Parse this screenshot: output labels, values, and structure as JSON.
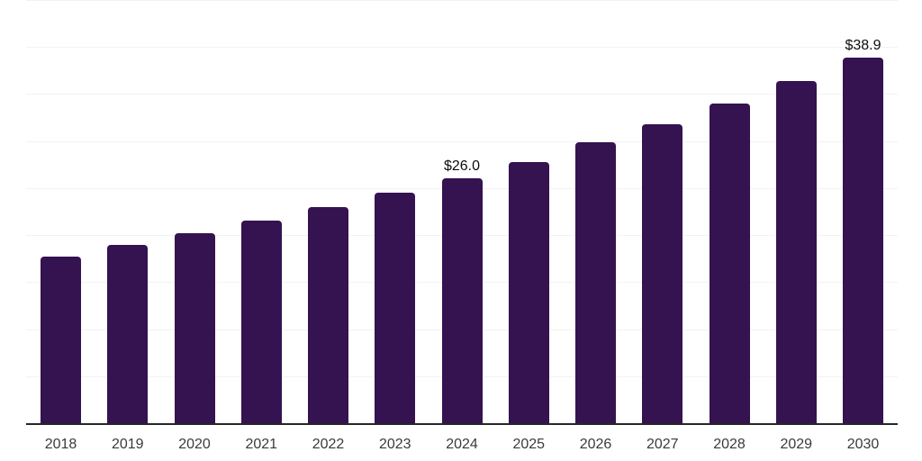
{
  "chart_data": {
    "type": "bar",
    "title": "",
    "xlabel": "",
    "ylabel": "",
    "categories": [
      "2018",
      "2019",
      "2020",
      "2021",
      "2022",
      "2023",
      "2024",
      "2025",
      "2026",
      "2027",
      "2028",
      "2029",
      "2030"
    ],
    "values": [
      17.7,
      19.0,
      20.2,
      21.5,
      23.0,
      24.5,
      26.0,
      27.8,
      29.9,
      31.8,
      34.0,
      36.4,
      38.9
    ],
    "point_labels": [
      "",
      "",
      "",
      "",
      "",
      "",
      "$26.0",
      "",
      "",
      "",
      "",
      "",
      "$38.9"
    ],
    "ylim": [
      0,
      45
    ],
    "grid_step": 5,
    "grid": "horizontal",
    "legend": "none",
    "colors": {
      "bar": "#351250",
      "gridline": "#f2f2f2",
      "axis_line": "#262626",
      "tick_label": "#3a3a3a",
      "data_label": "#0d0d0d",
      "background": "#ffffff"
    }
  }
}
